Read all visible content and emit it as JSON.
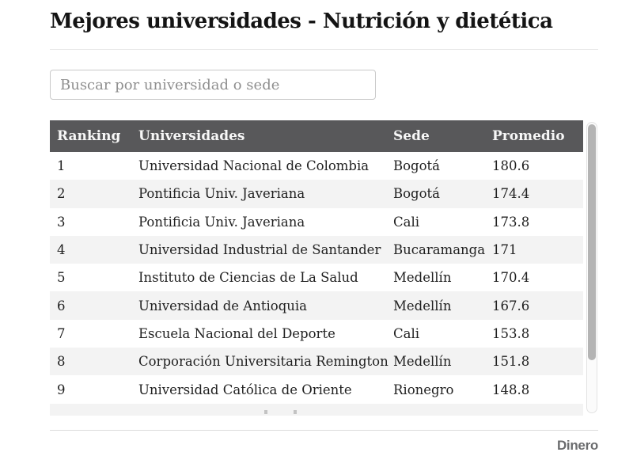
{
  "page": {
    "title": "Mejores universidades - Nutrición y dietética",
    "brand": "Dinero"
  },
  "search": {
    "placeholder": "Buscar por universidad o sede",
    "value": ""
  },
  "table": {
    "columns": [
      "Ranking",
      "Universidades",
      "Sede",
      "Promedio"
    ],
    "rows": [
      {
        "ranking": "1",
        "universidad": "Universidad Nacional de Colombia",
        "sede": "Bogotá",
        "promedio": "180.6"
      },
      {
        "ranking": "2",
        "universidad": "Pontificia Univ. Javeriana",
        "sede": "Bogotá",
        "promedio": "174.4"
      },
      {
        "ranking": "3",
        "universidad": "Pontificia Univ. Javeriana",
        "sede": "Cali",
        "promedio": "173.8"
      },
      {
        "ranking": "4",
        "universidad": "Universidad Industrial de Santander",
        "sede": "Bucaramanga",
        "promedio": "171"
      },
      {
        "ranking": "5",
        "universidad": "Instituto de Ciencias de La Salud",
        "sede": "Medellín",
        "promedio": "170.4"
      },
      {
        "ranking": "6",
        "universidad": "Universidad de Antioquia",
        "sede": "Medellín",
        "promedio": "167.6"
      },
      {
        "ranking": "7",
        "universidad": "Escuela Nacional del Deporte",
        "sede": "Cali",
        "promedio": "153.8"
      },
      {
        "ranking": "8",
        "universidad": "Corporación Universitaria Remington",
        "sede": "Medellín",
        "promedio": "151.8"
      },
      {
        "ranking": "9",
        "universidad": "Universidad Católica de Oriente",
        "sede": "Rionegro",
        "promedio": "148.8"
      }
    ],
    "clipped_row_visible": "true"
  },
  "colors": {
    "header_bg": "#58585a",
    "header_text": "#f7f7f7",
    "row_alt_bg": "#f3f3f3",
    "body_text": "#212121",
    "scrollbar_thumb": "#b4b4b4",
    "brand_text": "#6b6c6e",
    "search_border": "#c9c9c9"
  }
}
